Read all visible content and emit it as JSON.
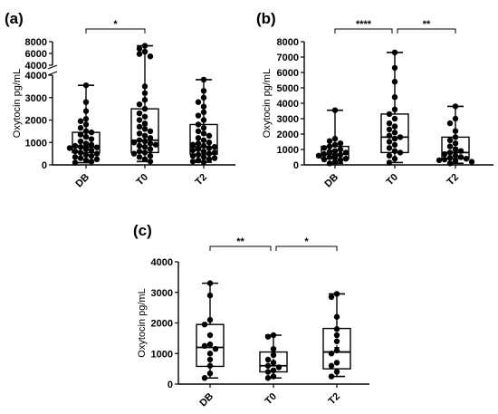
{
  "chart_data": [
    {
      "type": "box",
      "panel_label": "(a)",
      "ylabel": "Oxytocin pg/mL",
      "categories": [
        "DB",
        "T0",
        "T2"
      ],
      "axis_break": true,
      "segments": [
        {
          "ylim": [
            0,
            4000
          ],
          "ticks": [
            0,
            1000,
            2000,
            3000,
            4000
          ]
        },
        {
          "ylim": [
            4000,
            8000
          ],
          "ticks": [
            4000,
            6000,
            8000
          ]
        }
      ],
      "boxes": [
        {
          "min": 100,
          "q1": 550,
          "median": 800,
          "q3": 1450,
          "max": 3550,
          "mean": 850
        },
        {
          "min": 150,
          "q1": 550,
          "median": 1100,
          "q3": 2500,
          "max": 7300,
          "mean": 1750
        },
        {
          "min": 120,
          "q1": 480,
          "median": 800,
          "q3": 1800,
          "max": 3800,
          "mean": 1100
        }
      ],
      "points": [
        [
          3550,
          2800,
          2400,
          2050,
          1950,
          1800,
          1650,
          1500,
          1450,
          1350,
          1250,
          1150,
          1050,
          950,
          900,
          850,
          800,
          780,
          750,
          700,
          650,
          600,
          550,
          500,
          450,
          400,
          350,
          300,
          250,
          200,
          150,
          100
        ],
        [
          7300,
          6800,
          6300,
          5900,
          5500,
          3500,
          3200,
          2900,
          2700,
          2500,
          2300,
          2150,
          2000,
          1850,
          1700,
          1600,
          1500,
          1400,
          1300,
          1200,
          1100,
          1050,
          1000,
          950,
          900,
          850,
          800,
          700,
          600,
          550,
          500,
          400,
          350,
          250,
          150
        ],
        [
          3800,
          3300,
          3000,
          2800,
          2600,
          2350,
          2200,
          2000,
          1800,
          1650,
          1500,
          1400,
          1300,
          1200,
          1100,
          1000,
          950,
          900,
          850,
          800,
          750,
          700,
          650,
          600,
          550,
          500,
          450,
          400,
          350,
          300,
          250,
          200,
          150,
          120
        ]
      ],
      "significance": [
        {
          "from": "DB",
          "to": "T0",
          "label": "*"
        }
      ]
    },
    {
      "type": "box",
      "panel_label": "(b)",
      "ylabel": "Oxytocin pg/mL",
      "categories": [
        "DB",
        "T0",
        "T2"
      ],
      "ylim": [
        0,
        8000
      ],
      "ticks": [
        0,
        1000,
        2000,
        3000,
        4000,
        5000,
        6000,
        7000,
        8000
      ],
      "boxes": [
        {
          "min": 100,
          "q1": 400,
          "median": 700,
          "q3": 1200,
          "max": 3550,
          "mean": 850
        },
        {
          "min": 150,
          "q1": 800,
          "median": 1800,
          "q3": 3300,
          "max": 7300,
          "mean": 2400
        },
        {
          "min": 100,
          "q1": 400,
          "median": 800,
          "q3": 1800,
          "max": 3800,
          "mean": 1150
        }
      ],
      "points": [
        [
          3550,
          1700,
          1550,
          1400,
          1300,
          1200,
          1100,
          1000,
          900,
          850,
          800,
          700,
          650,
          600,
          550,
          500,
          400,
          350,
          300,
          200,
          100
        ],
        [
          7300,
          6300,
          5400,
          4400,
          3600,
          3300,
          3000,
          2700,
          2500,
          2300,
          2100,
          1900,
          1800,
          1700,
          1500,
          1300,
          1100,
          900,
          800,
          600,
          400,
          150
        ],
        [
          3800,
          3000,
          2700,
          2200,
          1800,
          1600,
          1400,
          1200,
          1000,
          900,
          800,
          700,
          600,
          500,
          450,
          400,
          350,
          300,
          250,
          200,
          100
        ]
      ],
      "significance": [
        {
          "from": "DB",
          "to": "T0",
          "label": "****"
        },
        {
          "from": "T0",
          "to": "T2",
          "label": "**"
        }
      ]
    },
    {
      "type": "box",
      "panel_label": "(c)",
      "ylabel": "Oxytocin pg/mL",
      "categories": [
        "DB",
        "T0",
        "T2"
      ],
      "ylim": [
        0,
        4000
      ],
      "ticks": [
        0,
        1000,
        2000,
        3000,
        4000
      ],
      "boxes": [
        {
          "min": 200,
          "q1": 580,
          "median": 1200,
          "q3": 1950,
          "max": 3300,
          "mean": 1300
        },
        {
          "min": 200,
          "q1": 400,
          "median": 600,
          "q3": 1050,
          "max": 1600,
          "mean": 750
        },
        {
          "min": 250,
          "q1": 500,
          "median": 1050,
          "q3": 1820,
          "max": 2950,
          "mean": 1200
        }
      ],
      "points": [
        [
          3300,
          2900,
          2100,
          1950,
          1600,
          1300,
          1250,
          1150,
          1000,
          800,
          600,
          350,
          200
        ],
        [
          1600,
          1550,
          1150,
          950,
          800,
          700,
          600,
          550,
          450,
          400,
          250,
          200
        ],
        [
          2950,
          2850,
          2200,
          1800,
          1600,
          1400,
          1100,
          1000,
          700,
          600,
          400,
          250
        ]
      ],
      "significance": [
        {
          "from": "DB",
          "to": "T0",
          "label": "**"
        },
        {
          "from": "T0",
          "to": "T2",
          "label": "*"
        }
      ]
    }
  ]
}
